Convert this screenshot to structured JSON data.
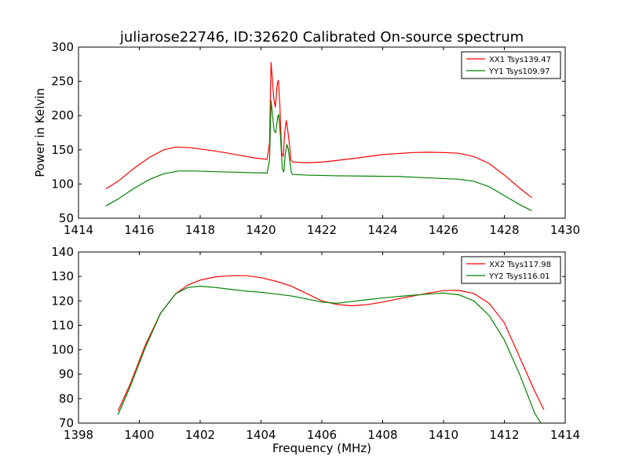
{
  "chart_data": [
    {
      "type": "line",
      "title": "juliarose22746, ID:32620 Calibrated On-source spectrum",
      "xlabel": "",
      "ylabel": "Power in Kelvin",
      "xlim": [
        1414,
        1430
      ],
      "ylim": [
        50,
        300
      ],
      "xticks": [
        "1414",
        "1416",
        "1418",
        "1420",
        "1422",
        "1424",
        "1426",
        "1428",
        "1430"
      ],
      "yticks": [
        "50",
        "100",
        "150",
        "200",
        "250",
        "300"
      ],
      "legend_position": "top-right",
      "grid": false,
      "series": [
        {
          "name": "XX1 Tsys139.47",
          "color": "#ff0000",
          "points": [
            [
              1414.9,
              93
            ],
            [
              1415.3,
              104
            ],
            [
              1415.8,
              122
            ],
            [
              1416.3,
              138
            ],
            [
              1416.8,
              150
            ],
            [
              1417.2,
              154
            ],
            [
              1417.7,
              153
            ],
            [
              1418.2,
              150
            ],
            [
              1418.8,
              146
            ],
            [
              1419.3,
              142
            ],
            [
              1419.8,
              138
            ],
            [
              1420.2,
              136
            ],
            [
              1420.28,
              160
            ],
            [
              1420.33,
              278
            ],
            [
              1420.42,
              225
            ],
            [
              1420.47,
              212
            ],
            [
              1420.53,
              245
            ],
            [
              1420.57,
              252
            ],
            [
              1420.62,
              215
            ],
            [
              1420.68,
              145
            ],
            [
              1420.73,
              140
            ],
            [
              1420.78,
              175
            ],
            [
              1420.83,
              193
            ],
            [
              1420.88,
              178
            ],
            [
              1420.93,
              160
            ],
            [
              1420.98,
              135
            ],
            [
              1421.05,
              132
            ],
            [
              1421.5,
              131
            ],
            [
              1422.0,
              132
            ],
            [
              1423.0,
              137
            ],
            [
              1424.0,
              143
            ],
            [
              1425.0,
              146
            ],
            [
              1425.5,
              146.5
            ],
            [
              1426.0,
              146
            ],
            [
              1426.5,
              145
            ],
            [
              1427.0,
              140
            ],
            [
              1427.5,
              130
            ],
            [
              1428.0,
              113
            ],
            [
              1428.5,
              94
            ],
            [
              1428.9,
              80
            ]
          ]
        },
        {
          "name": "YY1 Tsys109.97",
          "color": "#008000",
          "points": [
            [
              1414.9,
              68
            ],
            [
              1415.3,
              78
            ],
            [
              1415.8,
              93
            ],
            [
              1416.3,
              106
            ],
            [
              1416.8,
              115
            ],
            [
              1417.3,
              119
            ],
            [
              1417.8,
              119
            ],
            [
              1418.5,
              118
            ],
            [
              1419.3,
              117
            ],
            [
              1420.2,
              116
            ],
            [
              1420.28,
              135
            ],
            [
              1420.33,
              222
            ],
            [
              1420.43,
              178
            ],
            [
              1420.48,
              175
            ],
            [
              1420.55,
              198
            ],
            [
              1420.58,
              202
            ],
            [
              1420.64,
              170
            ],
            [
              1420.7,
              122
            ],
            [
              1420.75,
              118
            ],
            [
              1420.8,
              145
            ],
            [
              1420.85,
              158
            ],
            [
              1420.9,
              150
            ],
            [
              1420.95,
              132
            ],
            [
              1421.0,
              116
            ],
            [
              1421.05,
              114
            ],
            [
              1421.5,
              113
            ],
            [
              1422.5,
              112
            ],
            [
              1423.5,
              111.5
            ],
            [
              1424.5,
              111
            ],
            [
              1425.5,
              109
            ],
            [
              1426.5,
              107
            ],
            [
              1427.0,
              104
            ],
            [
              1427.5,
              96
            ],
            [
              1428.0,
              83
            ],
            [
              1428.5,
              70
            ],
            [
              1428.9,
              61
            ]
          ]
        }
      ]
    },
    {
      "type": "line",
      "title": "",
      "xlabel": "Frequency (MHz)",
      "ylabel": "",
      "xlim": [
        1398,
        1414
      ],
      "ylim": [
        70,
        140
      ],
      "xticks": [
        "1398",
        "1400",
        "1402",
        "1404",
        "1406",
        "1408",
        "1410",
        "1412",
        "1414"
      ],
      "yticks": [
        "70",
        "80",
        "90",
        "100",
        "110",
        "120",
        "130",
        "140"
      ],
      "legend_position": "top-right",
      "grid": false,
      "series": [
        {
          "name": "XX2 Tsys117.98",
          "color": "#ff0000",
          "points": [
            [
              1399.3,
              75
            ],
            [
              1399.7,
              86
            ],
            [
              1400.2,
              102
            ],
            [
              1400.7,
              115
            ],
            [
              1401.2,
              123
            ],
            [
              1401.6,
              126.5
            ],
            [
              1402.0,
              128.5
            ],
            [
              1402.5,
              129.8
            ],
            [
              1403.0,
              130.3
            ],
            [
              1403.5,
              130.3
            ],
            [
              1404.0,
              129.5
            ],
            [
              1404.5,
              128
            ],
            [
              1405.0,
              126
            ],
            [
              1405.5,
              123
            ],
            [
              1406.0,
              120
            ],
            [
              1406.5,
              118.5
            ],
            [
              1407.0,
              118
            ],
            [
              1407.5,
              118.5
            ],
            [
              1408.0,
              119.5
            ],
            [
              1408.5,
              120.8
            ],
            [
              1409.0,
              122
            ],
            [
              1409.5,
              123.2
            ],
            [
              1410.0,
              124.2
            ],
            [
              1410.5,
              124.3
            ],
            [
              1411.0,
              123
            ],
            [
              1411.5,
              119
            ],
            [
              1412.0,
              111
            ],
            [
              1412.5,
              97
            ],
            [
              1413.0,
              83
            ],
            [
              1413.3,
              75.5
            ]
          ]
        },
        {
          "name": "YY2 Tsys116.01",
          "color": "#008000",
          "points": [
            [
              1399.3,
              73.5
            ],
            [
              1399.7,
              85
            ],
            [
              1400.2,
              101
            ],
            [
              1400.7,
              115
            ],
            [
              1401.2,
              123
            ],
            [
              1401.6,
              125.5
            ],
            [
              1402.0,
              126
            ],
            [
              1402.5,
              125.5
            ],
            [
              1403.0,
              124.7
            ],
            [
              1403.5,
              124
            ],
            [
              1404.0,
              123.5
            ],
            [
              1404.5,
              122.8
            ],
            [
              1405.0,
              122
            ],
            [
              1405.5,
              120.8
            ],
            [
              1406.0,
              119.5
            ],
            [
              1406.5,
              119
            ],
            [
              1407.0,
              119.8
            ],
            [
              1407.5,
              120.5
            ],
            [
              1408.0,
              121.2
            ],
            [
              1408.5,
              121.8
            ],
            [
              1409.0,
              122.3
            ],
            [
              1409.5,
              122.8
            ],
            [
              1410.0,
              123.2
            ],
            [
              1410.5,
              122.5
            ],
            [
              1411.0,
              120
            ],
            [
              1411.5,
              114
            ],
            [
              1412.0,
              104
            ],
            [
              1412.5,
              90
            ],
            [
              1413.0,
              74
            ],
            [
              1413.2,
              70
            ]
          ]
        }
      ]
    }
  ]
}
